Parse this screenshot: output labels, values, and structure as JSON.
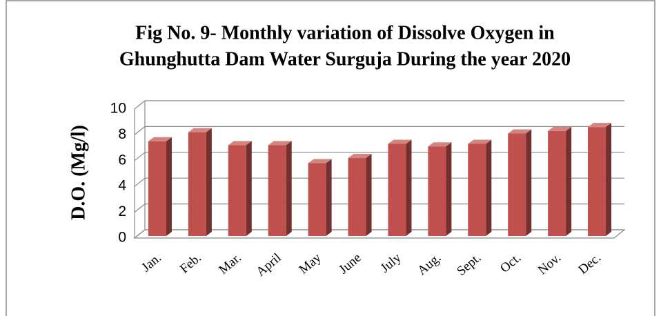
{
  "chart_data": {
    "type": "bar",
    "title": [
      "Fig No. 9- Monthly variation of Dissolve Oxygen in",
      "Ghunghutta Dam Water Surguja During the year 2020"
    ],
    "y_label": "D.O. (Mg/l)",
    "categories": [
      "Jan.",
      "Feb.",
      "Mar.",
      "April",
      "May",
      "June",
      "July",
      "Aug.",
      "Sept.",
      "Oct.",
      "Nov.",
      "Dec."
    ],
    "values": [
      7.5,
      8.2,
      7.2,
      7.2,
      5.8,
      6.2,
      7.3,
      7.1,
      7.3,
      8.1,
      8.3,
      8.6
    ],
    "color": "#c0504d",
    "ylim": [
      0,
      10
    ],
    "yticks": [
      0,
      2,
      4,
      6,
      8,
      10
    ],
    "grid": true
  }
}
